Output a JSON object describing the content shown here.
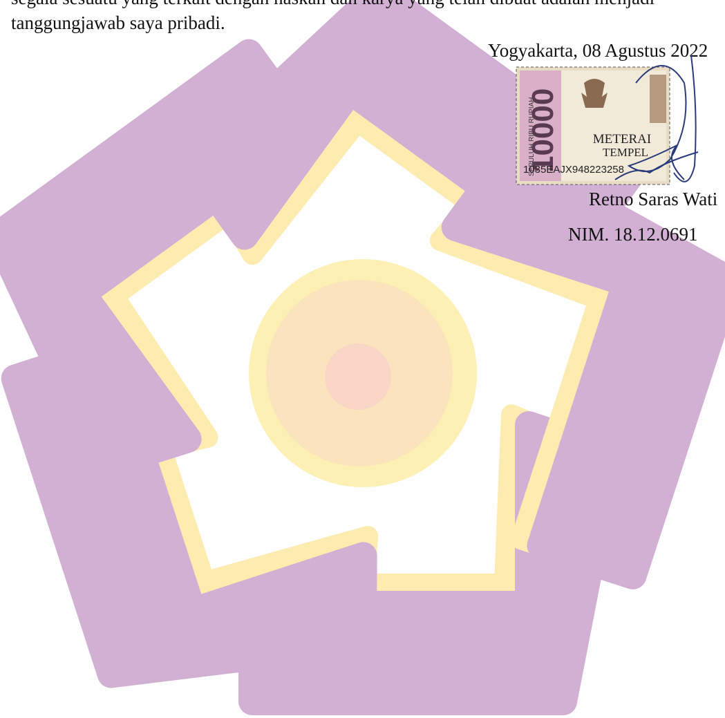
{
  "body": {
    "line1": "segala sesuatu yang terkait dengan naskah dan karya yang telah dibuat adalah menjadi",
    "line2": "tanggungjawab saya pribadi."
  },
  "signature": {
    "place_date": "Yogyakarta, 08 Agustus 2022",
    "name": "Retno Saras Wati",
    "nim": "NIM. 18.12.0691"
  },
  "stamp": {
    "denomination_text": "SEPULUH RIBU RUPIAH",
    "value": "10000",
    "title1": "METERAI",
    "title2": "TEMPEL",
    "serial": "1035EAJX948223258"
  }
}
